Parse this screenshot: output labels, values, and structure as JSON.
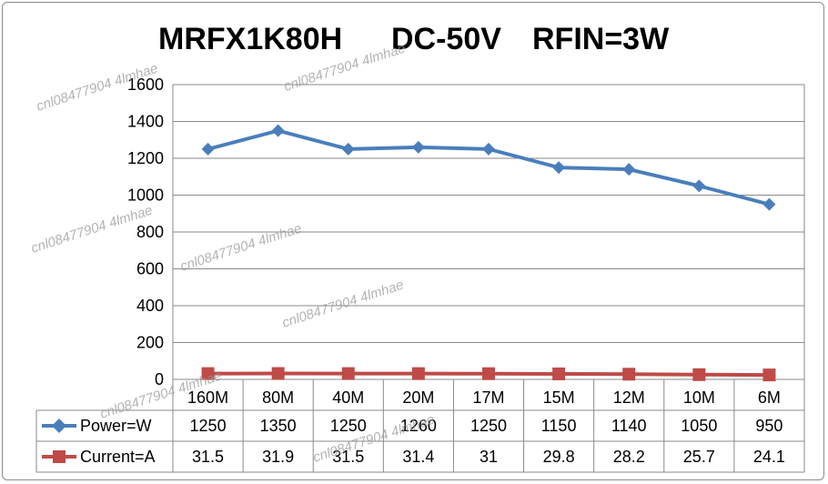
{
  "title": {
    "model": "MRFX1K80H",
    "voltage": "DC-50V",
    "rfin": "RFIN=3W"
  },
  "watermark": "cnl08477904 4lmhae",
  "chart_data": {
    "type": "line",
    "categories": [
      "160M",
      "80M",
      "40M",
      "20M",
      "17M",
      "15M",
      "12M",
      "10M",
      "6M"
    ],
    "series": [
      {
        "name": "Power=W",
        "values": [
          1250,
          1350,
          1250,
          1260,
          1250,
          1150,
          1140,
          1050,
          950
        ],
        "color": "#4a7ebb",
        "marker": "diamond"
      },
      {
        "name": "Current=A",
        "values": [
          31.5,
          31.9,
          31.5,
          31.4,
          31,
          29.8,
          28.2,
          25.7,
          24.1
        ],
        "color": "#be4b48",
        "marker": "square"
      }
    ],
    "ylim": [
      0,
      1600
    ],
    "yticks": [
      "0",
      "200",
      "400",
      "600",
      "800",
      "1000",
      "1200",
      "1400",
      "1600"
    ],
    "grid": true,
    "data_table": true
  }
}
